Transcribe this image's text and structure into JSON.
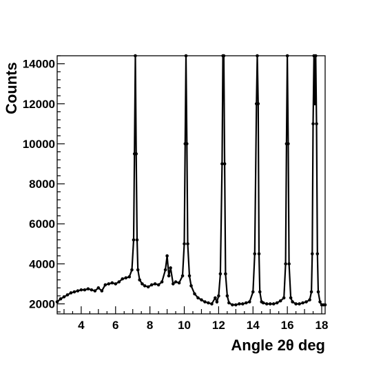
{
  "chart_data": {
    "type": "scatter",
    "title": "",
    "xlabel": "Angle 2θ deg",
    "ylabel": "Counts",
    "xlim": [
      2.6,
      18.2
    ],
    "ylim": [
      1500,
      14400
    ],
    "x_ticks": [
      4,
      6,
      8,
      10,
      12,
      14,
      16,
      18
    ],
    "y_ticks": [
      2000,
      4000,
      6000,
      8000,
      10000,
      12000,
      14000
    ],
    "grid": false,
    "legend": "none",
    "marker_color": "#000000",
    "series": [
      {
        "x": [
          2.6,
          2.8,
          3.0,
          3.2,
          3.4,
          3.6,
          3.8,
          4.0,
          4.2,
          4.4,
          4.6,
          4.8,
          5.0,
          5.2,
          5.4,
          5.6,
          5.8,
          6.0,
          6.2,
          6.4,
          6.6,
          6.8,
          6.95,
          7.05,
          7.1,
          7.15,
          7.2,
          7.25,
          7.3,
          7.4,
          7.55,
          7.7,
          7.9,
          8.1,
          8.3,
          8.5,
          8.7,
          8.9,
          9.0,
          9.1,
          9.2,
          9.35,
          9.5,
          9.7,
          9.9,
          10.0,
          10.05,
          10.1,
          10.15,
          10.2,
          10.3,
          10.4,
          10.6,
          10.8,
          11.0,
          11.2,
          11.4,
          11.6,
          11.8,
          11.9,
          12.0,
          12.1,
          12.2,
          12.25,
          12.3,
          12.35,
          12.4,
          12.5,
          12.6,
          12.8,
          13.0,
          13.2,
          13.4,
          13.6,
          13.8,
          14.0,
          14.1,
          14.2,
          14.25,
          14.3,
          14.35,
          14.4,
          14.5,
          14.6,
          14.8,
          15.0,
          15.2,
          15.4,
          15.6,
          15.8,
          15.9,
          15.95,
          16.0,
          16.05,
          16.1,
          16.2,
          16.3,
          16.5,
          16.7,
          16.9,
          17.1,
          17.3,
          17.4,
          17.45,
          17.5,
          17.55,
          17.6,
          17.65,
          17.7,
          17.75,
          17.8,
          17.9,
          18.0,
          18.1,
          18.2
        ],
        "y": [
          2100,
          2250,
          2350,
          2450,
          2550,
          2600,
          2650,
          2700,
          2700,
          2750,
          2700,
          2650,
          2800,
          2650,
          2950,
          3000,
          3050,
          3000,
          3100,
          3250,
          3300,
          3350,
          3700,
          5200,
          9500,
          14400,
          9500,
          5200,
          3700,
          3200,
          3000,
          2900,
          2850,
          2950,
          3000,
          2950,
          3100,
          3700,
          4400,
          3400,
          3800,
          3000,
          3100,
          3050,
          3400,
          5000,
          10000,
          14400,
          10000,
          5000,
          3400,
          2900,
          2500,
          2300,
          2200,
          2100,
          2050,
          2000,
          2300,
          2100,
          2400,
          3500,
          9000,
          14400,
          14400,
          9000,
          3500,
          2400,
          2050,
          1950,
          1950,
          2000,
          2000,
          2050,
          2100,
          2600,
          4500,
          12000,
          14400,
          12000,
          4500,
          2600,
          2100,
          2050,
          2000,
          2000,
          2000,
          2050,
          2150,
          2300,
          4000,
          10000,
          14400,
          10000,
          4000,
          2300,
          2100,
          2000,
          2000,
          2050,
          2100,
          2200,
          2600,
          4500,
          11000,
          14400,
          12000,
          14400,
          11000,
          4500,
          2600,
          2100,
          1950,
          1950,
          1950
        ]
      }
    ]
  }
}
